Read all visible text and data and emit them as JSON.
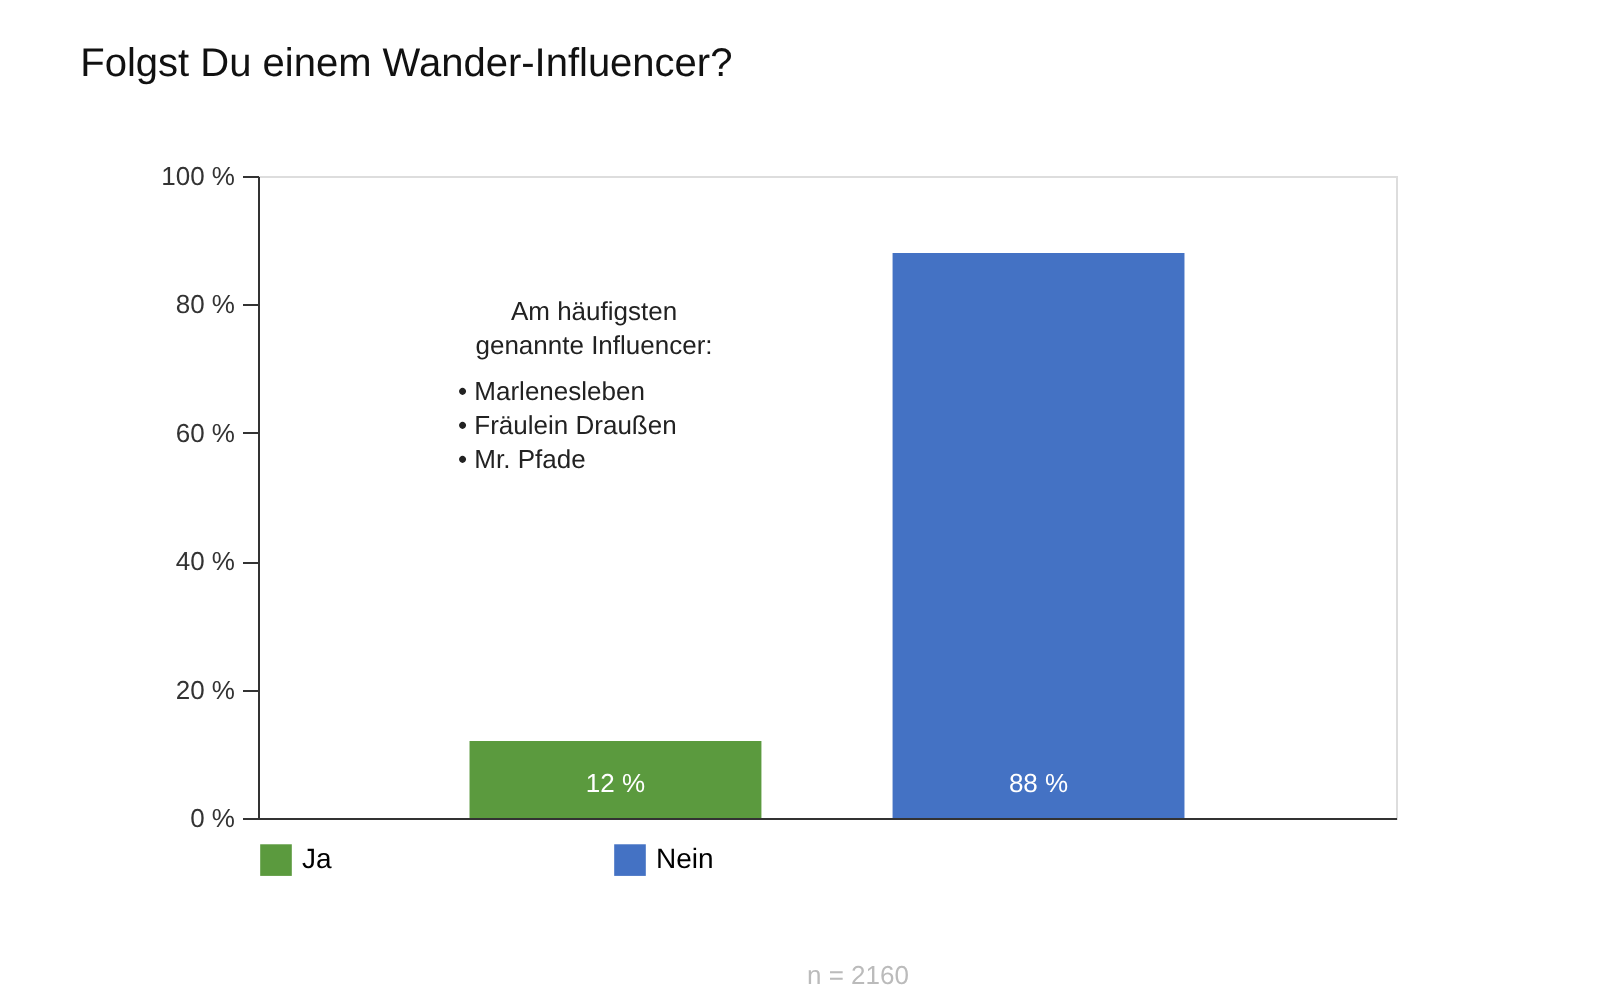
{
  "chart_data": {
    "type": "bar",
    "title": "Folgst Du einem Wander-Influencer?",
    "categories": [
      null,
      null
    ],
    "series": [
      {
        "name": "Ja",
        "color": "#5b9a3e",
        "values": [
          12,
          null
        ],
        "value_labels": [
          "12 %",
          null
        ]
      },
      {
        "name": "Nein",
        "color": "#4472c4",
        "values": [
          null,
          88
        ],
        "value_labels": [
          null,
          "88 %"
        ]
      }
    ],
    "ylim": [
      0,
      100
    ],
    "yticks": [
      {
        "value": 0,
        "label": "0 %"
      },
      {
        "value": 20,
        "label": "20 %"
      },
      {
        "value": 40,
        "label": "40 %"
      },
      {
        "value": 60,
        "label": "60 %"
      },
      {
        "value": 80,
        "label": "80 %"
      },
      {
        "value": 100,
        "label": "100 %"
      }
    ],
    "grid": false,
    "legend": "bottom",
    "tick_labels": "y",
    "annotations": [
      "Am häufigsten",
      "genannte Influencer:",
      "• Marlenesleben",
      "• Fräulein Draußen",
      "• Mr. Pfade",
      "n = 2160"
    ]
  }
}
